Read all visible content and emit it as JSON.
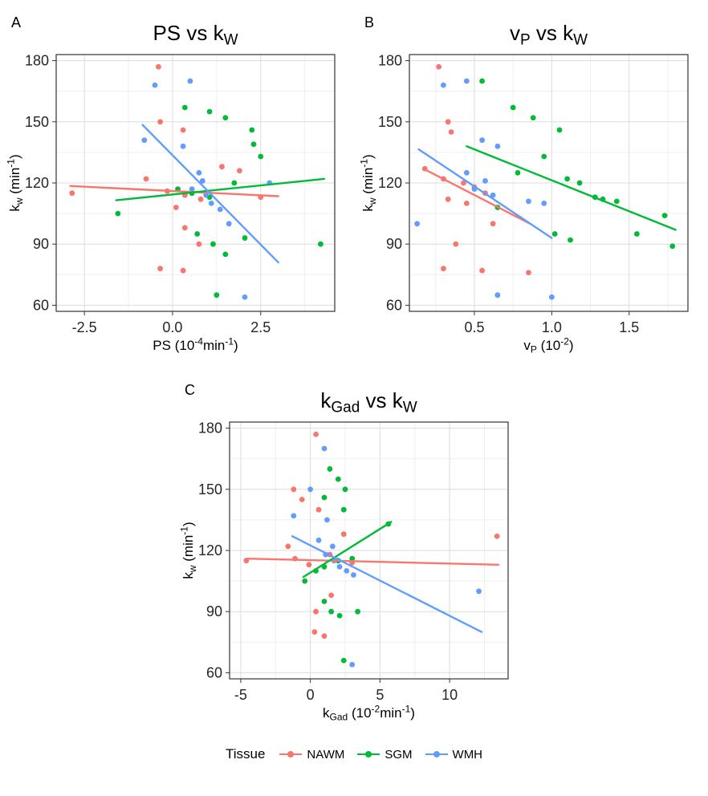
{
  "legend": {
    "title": "Tissue",
    "items": [
      {
        "label": "NAWM",
        "color": "#F8766D"
      },
      {
        "label": "SGM",
        "color": "#00BA38"
      },
      {
        "label": "WMH",
        "color": "#619CFF"
      }
    ]
  },
  "style": {
    "grid_major": "#DCDCDC",
    "grid_minor": "#EFEFEF",
    "panel_border": "#333333",
    "tick_color": "#333333",
    "tick_label_color": "#262626"
  },
  "chart_data": [
    {
      "type": "scatter",
      "panel_letter": "A",
      "title_plain": "PS vs kW",
      "title_parts": [
        {
          "text": "PS vs k"
        },
        {
          "text": "W",
          "sub": true
        }
      ],
      "xlabel_plain": "PS (10^-4 min^-1)",
      "xlabel_parts": [
        {
          "text": "PS (10"
        },
        {
          "text": "-4",
          "sup": true
        },
        {
          "text": "min"
        },
        {
          "text": "-1",
          "sup": true
        },
        {
          "text": ")"
        }
      ],
      "ylabel_plain": "kw (min^-1)",
      "ylabel_parts": [
        {
          "text": "k"
        },
        {
          "text": "w",
          "sub": true
        },
        {
          "text": " (min"
        },
        {
          "text": "-1",
          "sup": true
        },
        {
          "text": ")"
        }
      ],
      "xlim": [
        -3.3,
        4.6
      ],
      "ylim": [
        57,
        183
      ],
      "xticks": [
        -2.5,
        0.0,
        2.5
      ],
      "xtick_labels": [
        "-2.5",
        "0.0",
        "2.5"
      ],
      "yticks": [
        60,
        90,
        120,
        150,
        180
      ],
      "ytick_labels": [
        "60",
        "90",
        "120",
        "150",
        "180"
      ],
      "series": [
        {
          "name": "NAWM",
          "color": "#F8766D",
          "points": [
            [
              -2.85,
              115
            ],
            [
              -0.4,
              177
            ],
            [
              -0.35,
              150
            ],
            [
              0.3,
              146
            ],
            [
              -0.75,
              122
            ],
            [
              -0.15,
              116
            ],
            [
              0.1,
              108
            ],
            [
              0.35,
              114
            ],
            [
              0.8,
              112
            ],
            [
              1.4,
              128
            ],
            [
              1.9,
              126
            ],
            [
              0.35,
              98
            ],
            [
              0.75,
              90
            ],
            [
              -0.35,
              78
            ],
            [
              0.3,
              77
            ],
            [
              2.5,
              113
            ]
          ],
          "trend": [
            [
              -2.9,
              118.5
            ],
            [
              3.0,
              113.5
            ]
          ]
        },
        {
          "name": "SGM",
          "color": "#00BA38",
          "points": [
            [
              -1.55,
              105
            ],
            [
              0.35,
              157
            ],
            [
              1.05,
              155
            ],
            [
              1.5,
              152
            ],
            [
              2.25,
              146
            ],
            [
              2.3,
              139
            ],
            [
              0.15,
              117
            ],
            [
              0.55,
              115
            ],
            [
              1.05,
              113
            ],
            [
              1.75,
              120
            ],
            [
              2.5,
              133
            ],
            [
              0.7,
              95
            ],
            [
              1.15,
              90
            ],
            [
              1.5,
              85
            ],
            [
              2.05,
              93
            ],
            [
              4.2,
              90
            ],
            [
              1.25,
              65
            ]
          ],
          "trend": [
            [
              -1.6,
              111.5
            ],
            [
              4.3,
              122
            ]
          ]
        },
        {
          "name": "WMH",
          "color": "#619CFF",
          "points": [
            [
              -0.5,
              168
            ],
            [
              0.5,
              170
            ],
            [
              -0.8,
              141
            ],
            [
              0.3,
              138
            ],
            [
              0.75,
              125
            ],
            [
              0.85,
              121
            ],
            [
              0.55,
              117
            ],
            [
              0.95,
              114
            ],
            [
              1.1,
              110
            ],
            [
              1.35,
              107
            ],
            [
              1.6,
              100
            ],
            [
              2.75,
              120
            ],
            [
              2.05,
              64
            ]
          ],
          "trend": [
            [
              -0.85,
              148.5
            ],
            [
              3.0,
              81
            ]
          ]
        }
      ]
    },
    {
      "type": "scatter",
      "panel_letter": "B",
      "title_plain": "vP vs kW",
      "title_parts": [
        {
          "text": "v"
        },
        {
          "text": "P",
          "sub": true
        },
        {
          "text": " vs k"
        },
        {
          "text": "W",
          "sub": true
        }
      ],
      "xlabel_plain": "vP (10^-2)",
      "xlabel_parts": [
        {
          "text": "v"
        },
        {
          "text": "P",
          "sub": true
        },
        {
          "text": " (10"
        },
        {
          "text": "-2",
          "sup": true
        },
        {
          "text": ")"
        }
      ],
      "ylabel_plain": "kw (min^-1)",
      "ylabel_parts": [
        {
          "text": "k"
        },
        {
          "text": "w",
          "sub": true
        },
        {
          "text": " (min"
        },
        {
          "text": "-1",
          "sup": true
        },
        {
          "text": ")"
        }
      ],
      "xlim": [
        0.08,
        1.88
      ],
      "ylim": [
        57,
        183
      ],
      "xticks": [
        0.5,
        1.0,
        1.5
      ],
      "xtick_labels": [
        "0.5",
        "1.0",
        "1.5"
      ],
      "yticks": [
        60,
        90,
        120,
        150,
        180
      ],
      "ytick_labels": [
        "60",
        "90",
        "120",
        "150",
        "180"
      ],
      "series": [
        {
          "name": "NAWM",
          "color": "#F8766D",
          "points": [
            [
              0.27,
              177
            ],
            [
              0.33,
              150
            ],
            [
              0.35,
              145
            ],
            [
              0.18,
              127
            ],
            [
              0.3,
              122
            ],
            [
              0.43,
              120
            ],
            [
              0.5,
              118
            ],
            [
              0.57,
              115
            ],
            [
              0.33,
              112
            ],
            [
              0.45,
              110
            ],
            [
              0.62,
              100
            ],
            [
              0.38,
              90
            ],
            [
              0.3,
              78
            ],
            [
              0.55,
              77
            ],
            [
              0.85,
              76
            ]
          ],
          "trend": [
            [
              0.17,
              127
            ],
            [
              0.86,
              100
            ]
          ]
        },
        {
          "name": "SGM",
          "color": "#00BA38",
          "points": [
            [
              0.55,
              170
            ],
            [
              0.75,
              157
            ],
            [
              0.88,
              152
            ],
            [
              1.05,
              146
            ],
            [
              0.95,
              133
            ],
            [
              0.78,
              125
            ],
            [
              1.1,
              122
            ],
            [
              1.18,
              120
            ],
            [
              0.65,
              108
            ],
            [
              1.28,
              113
            ],
            [
              1.33,
              112
            ],
            [
              1.42,
              111
            ],
            [
              1.02,
              95
            ],
            [
              1.12,
              92
            ],
            [
              1.55,
              95
            ],
            [
              1.73,
              104
            ],
            [
              1.78,
              89
            ]
          ],
          "trend": [
            [
              0.45,
              138
            ],
            [
              1.8,
              97
            ]
          ]
        },
        {
          "name": "WMH",
          "color": "#619CFF",
          "points": [
            [
              0.3,
              168
            ],
            [
              0.45,
              170
            ],
            [
              0.55,
              141
            ],
            [
              0.65,
              138
            ],
            [
              0.45,
              125
            ],
            [
              0.57,
              121
            ],
            [
              0.5,
              117
            ],
            [
              0.62,
              114
            ],
            [
              0.85,
              111
            ],
            [
              0.95,
              110
            ],
            [
              0.13,
              100
            ],
            [
              0.65,
              65
            ],
            [
              1.0,
              64
            ]
          ],
          "trend": [
            [
              0.14,
              136.5
            ],
            [
              1.0,
              93
            ]
          ]
        }
      ]
    },
    {
      "type": "scatter",
      "panel_letter": "C",
      "title_plain": "kGad vs kW",
      "title_parts": [
        {
          "text": "k"
        },
        {
          "text": "Gad",
          "sub": true
        },
        {
          "text": " vs k"
        },
        {
          "text": "W",
          "sub": true
        }
      ],
      "xlabel_plain": "kGad (10^-2 min^-1)",
      "xlabel_parts": [
        {
          "text": "k"
        },
        {
          "text": "Gad",
          "sub": true
        },
        {
          "text": " (10"
        },
        {
          "text": "-2",
          "sup": true
        },
        {
          "text": "min"
        },
        {
          "text": "-1",
          "sup": true
        },
        {
          "text": ")"
        }
      ],
      "ylabel_plain": "kw (min^-1)",
      "ylabel_parts": [
        {
          "text": "k"
        },
        {
          "text": "w",
          "sub": true
        },
        {
          "text": " (min"
        },
        {
          "text": "-1",
          "sup": true
        },
        {
          "text": ")"
        }
      ],
      "xlim": [
        -5.8,
        14.2
      ],
      "ylim": [
        57,
        183
      ],
      "xticks": [
        -5,
        0,
        5,
        10
      ],
      "xtick_labels": [
        "-5",
        "0",
        "5",
        "10"
      ],
      "yticks": [
        60,
        90,
        120,
        150,
        180
      ],
      "ytick_labels": [
        "60",
        "90",
        "120",
        "150",
        "180"
      ],
      "series": [
        {
          "name": "NAWM",
          "color": "#F8766D",
          "points": [
            [
              -4.6,
              115
            ],
            [
              -1.2,
              150
            ],
            [
              -0.6,
              145
            ],
            [
              0.4,
              177
            ],
            [
              0.6,
              140
            ],
            [
              -1.6,
              122
            ],
            [
              -1.1,
              116
            ],
            [
              -0.1,
              113
            ],
            [
              1.4,
              118
            ],
            [
              2.4,
              128
            ],
            [
              3.0,
              114
            ],
            [
              1.5,
              98
            ],
            [
              0.4,
              90
            ],
            [
              0.3,
              80
            ],
            [
              1.0,
              78
            ],
            [
              13.4,
              127
            ]
          ],
          "trend": [
            [
              -4.6,
              116
            ],
            [
              13.5,
              113
            ]
          ]
        },
        {
          "name": "SGM",
          "color": "#00BA38",
          "points": [
            [
              1.4,
              160
            ],
            [
              2.0,
              155
            ],
            [
              2.5,
              150
            ],
            [
              1.0,
              146
            ],
            [
              2.4,
              140
            ],
            [
              5.6,
              133
            ],
            [
              -0.4,
              105
            ],
            [
              0.4,
              110
            ],
            [
              1.0,
              112
            ],
            [
              2.0,
              115
            ],
            [
              3.0,
              116
            ],
            [
              1.0,
              95
            ],
            [
              1.5,
              90
            ],
            [
              2.1,
              88
            ],
            [
              3.4,
              90
            ],
            [
              2.4,
              66
            ]
          ],
          "trend": [
            [
              -0.5,
              107
            ],
            [
              5.8,
              134
            ]
          ]
        },
        {
          "name": "WMH",
          "color": "#619CFF",
          "points": [
            [
              0.0,
              150
            ],
            [
              1.0,
              170
            ],
            [
              -1.2,
              137
            ],
            [
              1.2,
              135
            ],
            [
              0.6,
              125
            ],
            [
              1.6,
              122
            ],
            [
              1.1,
              118
            ],
            [
              1.7,
              115
            ],
            [
              2.1,
              112
            ],
            [
              2.6,
              110
            ],
            [
              3.1,
              108
            ],
            [
              12.1,
              100
            ],
            [
              3.0,
              64
            ]
          ],
          "trend": [
            [
              -1.3,
              127
            ],
            [
              12.3,
              80
            ]
          ]
        }
      ]
    }
  ]
}
